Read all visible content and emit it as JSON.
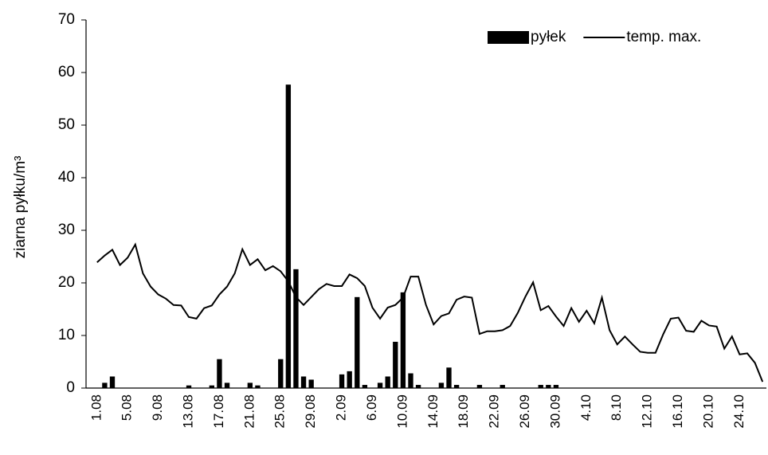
{
  "chart_data": {
    "type": "bar",
    "y_label": "ziarna pyłku/m³",
    "categories": [
      "1.08",
      null,
      null,
      null,
      "5.08",
      null,
      null,
      null,
      "9.08",
      null,
      null,
      null,
      "13.08",
      null,
      null,
      null,
      "17.08",
      null,
      null,
      null,
      "21.08",
      null,
      null,
      null,
      "25.08",
      null,
      null,
      null,
      "29.08",
      null,
      null,
      null,
      "2.09",
      null,
      null,
      null,
      "6.09",
      null,
      null,
      null,
      "10.09",
      null,
      null,
      null,
      "14.09",
      null,
      null,
      null,
      "18.09",
      null,
      null,
      null,
      "22.09",
      null,
      null,
      null,
      "26.09",
      null,
      null,
      null,
      "30.09",
      null,
      null,
      null,
      "4.10",
      null,
      null,
      null,
      "8.10",
      null,
      null,
      null,
      "12.10",
      null,
      null,
      null,
      "16.10",
      null,
      null,
      null,
      "20.10",
      null,
      null,
      null,
      "24.10",
      null,
      null,
      null
    ],
    "series": [
      {
        "name": "pyłek",
        "type": "bar",
        "color": "#000000",
        "values": [
          0,
          1,
          2.2,
          0,
          0,
          0,
          0,
          0,
          0,
          0,
          0,
          0,
          0.5,
          0,
          0,
          0.5,
          5.5,
          1,
          0,
          0,
          1,
          0.5,
          0,
          0,
          5.5,
          57.7,
          22.6,
          2.2,
          1.6,
          0,
          0,
          0,
          2.6,
          3.2,
          17.3,
          0.6,
          0,
          1,
          2.2,
          8.8,
          18.2,
          2.8,
          0.6,
          0,
          0,
          1,
          3.9,
          0.6,
          0,
          0,
          0.6,
          0,
          0,
          0.6,
          0,
          0,
          0,
          0,
          0.6,
          0.6,
          0.6,
          0,
          0,
          0,
          0,
          0,
          0,
          0,
          0,
          0,
          0,
          0,
          0,
          0,
          0,
          0,
          0,
          0,
          0,
          0,
          0,
          0,
          0,
          0,
          0,
          0,
          0,
          0
        ]
      },
      {
        "name": "temp. max.",
        "type": "line",
        "color": "#000000",
        "values": [
          23.9,
          25.2,
          26.3,
          23.4,
          24.8,
          27.3,
          21.8,
          19.3,
          17.8,
          17.0,
          15.8,
          15.7,
          13.5,
          13.2,
          15.2,
          15.7,
          17.8,
          19.3,
          21.8,
          26.4,
          23.4,
          24.5,
          22.4,
          23.2,
          22.2,
          20.3,
          17.3,
          15.8,
          17.3,
          18.8,
          19.8,
          19.4,
          19.4,
          21.6,
          20.9,
          19.4,
          15.3,
          13.2,
          15.3,
          15.8,
          17.2,
          21.2,
          21.2,
          15.8,
          12.1,
          13.7,
          14.2,
          16.8,
          17.4,
          17.2,
          10.3,
          10.8,
          10.8,
          11.0,
          11.8,
          14.3,
          17.4,
          20.1,
          14.8,
          15.6,
          13.6,
          11.8,
          15.2,
          12.6,
          14.7,
          12.3,
          17.2,
          11.0,
          8.3,
          9.8,
          8.3,
          6.9,
          6.7,
          6.7,
          10.2,
          13.2,
          13.4,
          10.9,
          10.7,
          12.8,
          11.9,
          11.7,
          7.5,
          9.8,
          6.4,
          6.6,
          4.8,
          1.2
        ]
      }
    ],
    "ylim": [
      0,
      70
    ],
    "yticks": [
      0,
      10,
      20,
      30,
      40,
      50,
      60,
      70
    ],
    "grid": false,
    "legend": "top-right"
  }
}
